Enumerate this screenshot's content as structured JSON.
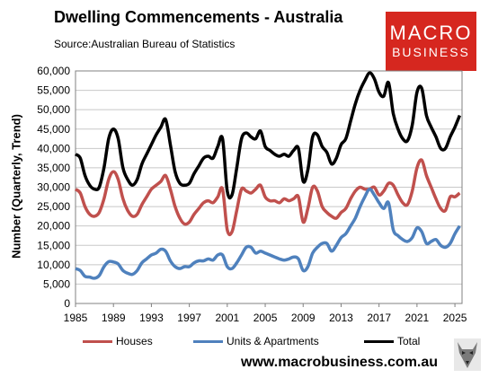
{
  "header": {
    "title": "Dwelling Commencements - Australia",
    "source": "Source:Australian Bureau of Statistics"
  },
  "logo": {
    "line1": "MACRO",
    "line2": "BUSINESS",
    "color": "#d6271f"
  },
  "footer": {
    "url": "www.macrobusiness.com.au",
    "wolf_icon": "wolf-icon"
  },
  "chart_data": {
    "type": "line",
    "title": "Dwelling Commencements - Australia",
    "ylabel": "Number (Quarterly, Trend)",
    "xlabel": "",
    "ylim": [
      0,
      60000
    ],
    "xlim": [
      1985,
      2025.75
    ],
    "x_ticks": [
      1985,
      1989,
      1993,
      1997,
      2001,
      2005,
      2009,
      2013,
      2017,
      2021,
      2025
    ],
    "y_ticks": [
      0,
      5000,
      10000,
      15000,
      20000,
      25000,
      30000,
      35000,
      40000,
      45000,
      50000,
      55000,
      60000
    ],
    "y_tick_labels": [
      "0",
      "5,000",
      "10,000",
      "15,000",
      "20,000",
      "25,000",
      "30,000",
      "35,000",
      "40,000",
      "45,000",
      "50,000",
      "55,000",
      "60,000"
    ],
    "grid": true,
    "legend_position": "bottom",
    "series": [
      {
        "name": "Houses",
        "color": "#c0504d",
        "points": [
          [
            1985,
            29500
          ],
          [
            1985.5,
            28500
          ],
          [
            1986,
            25000
          ],
          [
            1986.5,
            23000
          ],
          [
            1987,
            22500
          ],
          [
            1987.5,
            23500
          ],
          [
            1988,
            27000
          ],
          [
            1988.5,
            32000
          ],
          [
            1989,
            34000
          ],
          [
            1989.5,
            32000
          ],
          [
            1990,
            27000
          ],
          [
            1990.5,
            24000
          ],
          [
            1991,
            22500
          ],
          [
            1991.5,
            23000
          ],
          [
            1992,
            25500
          ],
          [
            1992.5,
            27500
          ],
          [
            1993,
            29500
          ],
          [
            1993.5,
            30500
          ],
          [
            1994,
            31500
          ],
          [
            1994.5,
            33000
          ],
          [
            1995,
            29500
          ],
          [
            1995.5,
            25000
          ],
          [
            1996,
            22000
          ],
          [
            1996.5,
            20500
          ],
          [
            1997,
            21000
          ],
          [
            1997.5,
            23000
          ],
          [
            1998,
            24500
          ],
          [
            1998.5,
            26000
          ],
          [
            1999,
            26500
          ],
          [
            1999.5,
            26000
          ],
          [
            2000,
            27500
          ],
          [
            2000.5,
            29500
          ],
          [
            2001,
            19000
          ],
          [
            2001.5,
            18500
          ],
          [
            2002,
            24000
          ],
          [
            2002.5,
            29500
          ],
          [
            2003,
            29000
          ],
          [
            2003.5,
            28500
          ],
          [
            2004,
            29500
          ],
          [
            2004.5,
            30500
          ],
          [
            2005,
            27500
          ],
          [
            2005.5,
            26500
          ],
          [
            2006,
            26500
          ],
          [
            2006.5,
            26000
          ],
          [
            2007,
            27000
          ],
          [
            2007.5,
            26500
          ],
          [
            2008,
            27000
          ],
          [
            2008.5,
            27500
          ],
          [
            2009,
            21000
          ],
          [
            2009.5,
            24500
          ],
          [
            2010,
            30000
          ],
          [
            2010.5,
            29000
          ],
          [
            2011,
            25000
          ],
          [
            2011.5,
            23500
          ],
          [
            2012,
            22500
          ],
          [
            2012.5,
            22000
          ],
          [
            2013,
            23500
          ],
          [
            2013.5,
            24500
          ],
          [
            2014,
            27000
          ],
          [
            2014.5,
            29000
          ],
          [
            2015,
            30000
          ],
          [
            2015.5,
            29500
          ],
          [
            2016,
            29500
          ],
          [
            2016.5,
            30000
          ],
          [
            2017,
            28000
          ],
          [
            2017.5,
            29000
          ],
          [
            2018,
            31000
          ],
          [
            2018.5,
            30500
          ],
          [
            2019,
            28000
          ],
          [
            2019.5,
            26000
          ],
          [
            2020,
            25500
          ],
          [
            2020.5,
            29000
          ],
          [
            2021,
            35000
          ],
          [
            2021.5,
            37000
          ],
          [
            2022,
            33000
          ],
          [
            2022.5,
            30000
          ],
          [
            2023,
            27000
          ],
          [
            2023.5,
            24500
          ],
          [
            2024,
            24000
          ],
          [
            2024.5,
            27500
          ],
          [
            2025,
            27500
          ],
          [
            2025.5,
            28500
          ]
        ]
      },
      {
        "name": "Units & Apartments",
        "color": "#4f81bd",
        "points": [
          [
            1985,
            9000
          ],
          [
            1985.5,
            8500
          ],
          [
            1986,
            7000
          ],
          [
            1986.5,
            6800
          ],
          [
            1987,
            6500
          ],
          [
            1987.5,
            7200
          ],
          [
            1988,
            9500
          ],
          [
            1988.5,
            10800
          ],
          [
            1989,
            10700
          ],
          [
            1989.5,
            10200
          ],
          [
            1990,
            8500
          ],
          [
            1990.5,
            7800
          ],
          [
            1991,
            7500
          ],
          [
            1991.5,
            8500
          ],
          [
            1992,
            10500
          ],
          [
            1992.5,
            11500
          ],
          [
            1993,
            12500
          ],
          [
            1993.5,
            13000
          ],
          [
            1994,
            14000
          ],
          [
            1994.5,
            13500
          ],
          [
            1995,
            11000
          ],
          [
            1995.5,
            9500
          ],
          [
            1996,
            9000
          ],
          [
            1996.5,
            9500
          ],
          [
            1997,
            9500
          ],
          [
            1997.5,
            10500
          ],
          [
            1998,
            11000
          ],
          [
            1998.5,
            11000
          ],
          [
            1999,
            11500
          ],
          [
            1999.5,
            11200
          ],
          [
            2000,
            12500
          ],
          [
            2000.5,
            12500
          ],
          [
            2001,
            9500
          ],
          [
            2001.5,
            9000
          ],
          [
            2002,
            10500
          ],
          [
            2002.5,
            12500
          ],
          [
            2003,
            14500
          ],
          [
            2003.5,
            14500
          ],
          [
            2004,
            13000
          ],
          [
            2004.5,
            13500
          ],
          [
            2005,
            13000
          ],
          [
            2005.5,
            12500
          ],
          [
            2006,
            12000
          ],
          [
            2006.5,
            11500
          ],
          [
            2007,
            11200
          ],
          [
            2007.5,
            11500
          ],
          [
            2008,
            12000
          ],
          [
            2008.5,
            11500
          ],
          [
            2009,
            8500
          ],
          [
            2009.5,
            9500
          ],
          [
            2010,
            13000
          ],
          [
            2010.5,
            14500
          ],
          [
            2011,
            15500
          ],
          [
            2011.5,
            15500
          ],
          [
            2012,
            13500
          ],
          [
            2012.5,
            15000
          ],
          [
            2013,
            17000
          ],
          [
            2013.5,
            18000
          ],
          [
            2014,
            20000
          ],
          [
            2014.5,
            22000
          ],
          [
            2015,
            25000
          ],
          [
            2015.5,
            27500
          ],
          [
            2016,
            29500
          ],
          [
            2016.5,
            28000
          ],
          [
            2017,
            26000
          ],
          [
            2017.5,
            24500
          ],
          [
            2018,
            26000
          ],
          [
            2018.5,
            19000
          ],
          [
            2019,
            17500
          ],
          [
            2019.5,
            16500
          ],
          [
            2020,
            16000
          ],
          [
            2020.5,
            17000
          ],
          [
            2021,
            19500
          ],
          [
            2021.5,
            18500
          ],
          [
            2022,
            15500
          ],
          [
            2022.5,
            16000
          ],
          [
            2023,
            16500
          ],
          [
            2023.5,
            15000
          ],
          [
            2024,
            14500
          ],
          [
            2024.5,
            15500
          ],
          [
            2025,
            18000
          ],
          [
            2025.5,
            20000
          ]
        ]
      },
      {
        "name": "Total",
        "color": "#000000",
        "points": [
          [
            1985,
            38500
          ],
          [
            1985.5,
            37500
          ],
          [
            1986,
            33000
          ],
          [
            1986.5,
            30500
          ],
          [
            1987,
            29500
          ],
          [
            1987.5,
            30000
          ],
          [
            1988,
            35000
          ],
          [
            1988.5,
            42500
          ],
          [
            1989,
            45000
          ],
          [
            1989.5,
            42500
          ],
          [
            1990,
            35000
          ],
          [
            1990.5,
            32000
          ],
          [
            1991,
            30500
          ],
          [
            1991.5,
            32000
          ],
          [
            1992,
            36000
          ],
          [
            1992.5,
            38500
          ],
          [
            1993,
            41000
          ],
          [
            1993.5,
            43500
          ],
          [
            1994,
            45500
          ],
          [
            1994.5,
            47500
          ],
          [
            1995,
            41000
          ],
          [
            1995.5,
            34000
          ],
          [
            1996,
            31000
          ],
          [
            1996.5,
            30500
          ],
          [
            1997,
            31000
          ],
          [
            1997.5,
            33500
          ],
          [
            1998,
            35500
          ],
          [
            1998.5,
            37500
          ],
          [
            1999,
            38000
          ],
          [
            1999.5,
            37500
          ],
          [
            2000,
            40500
          ],
          [
            2000.5,
            42500
          ],
          [
            2001,
            29000
          ],
          [
            2001.5,
            28000
          ],
          [
            2002,
            35000
          ],
          [
            2002.5,
            42500
          ],
          [
            2003,
            44000
          ],
          [
            2003.5,
            43000
          ],
          [
            2004,
            42500
          ],
          [
            2004.5,
            44500
          ],
          [
            2005,
            40500
          ],
          [
            2005.5,
            39500
          ],
          [
            2006,
            38500
          ],
          [
            2006.5,
            38000
          ],
          [
            2007,
            38500
          ],
          [
            2007.5,
            38000
          ],
          [
            2008,
            39500
          ],
          [
            2008.5,
            40000
          ],
          [
            2009,
            31500
          ],
          [
            2009.5,
            34500
          ],
          [
            2010,
            43000
          ],
          [
            2010.5,
            43500
          ],
          [
            2011,
            40500
          ],
          [
            2011.5,
            39000
          ],
          [
            2012,
            36000
          ],
          [
            2012.5,
            37500
          ],
          [
            2013,
            41000
          ],
          [
            2013.5,
            42500
          ],
          [
            2014,
            47000
          ],
          [
            2014.5,
            51500
          ],
          [
            2015,
            55000
          ],
          [
            2015.5,
            57500
          ],
          [
            2016,
            59500
          ],
          [
            2016.5,
            58000
          ],
          [
            2017,
            54500
          ],
          [
            2017.5,
            53500
          ],
          [
            2018,
            57000
          ],
          [
            2018.5,
            49000
          ],
          [
            2019,
            45000
          ],
          [
            2019.5,
            42500
          ],
          [
            2020,
            42000
          ],
          [
            2020.5,
            46000
          ],
          [
            2021,
            54500
          ],
          [
            2021.5,
            55500
          ],
          [
            2022,
            48500
          ],
          [
            2022.5,
            45500
          ],
          [
            2023,
            43000
          ],
          [
            2023.5,
            40000
          ],
          [
            2024,
            40000
          ],
          [
            2024.5,
            43000
          ],
          [
            2025,
            45500
          ],
          [
            2025.5,
            48500
          ]
        ]
      }
    ]
  }
}
